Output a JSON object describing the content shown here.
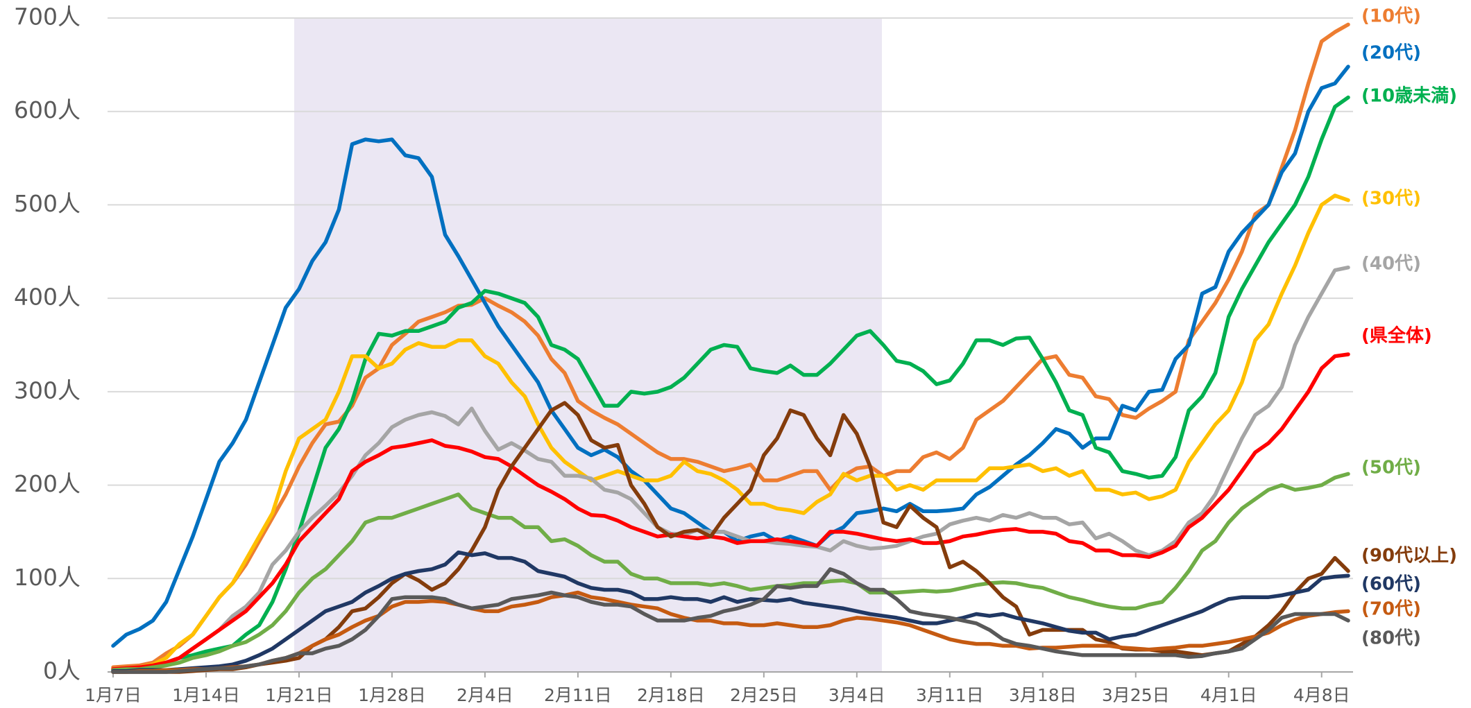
{
  "chart_data": {
    "type": "line",
    "categories": [
      "1月7日",
      null,
      null,
      null,
      null,
      null,
      null,
      "1月14日",
      null,
      null,
      null,
      null,
      null,
      null,
      "1月21日",
      null,
      null,
      null,
      null,
      null,
      null,
      "1月28日",
      null,
      null,
      null,
      null,
      null,
      null,
      "2月4日",
      null,
      null,
      null,
      null,
      null,
      null,
      "2月11日",
      null,
      null,
      null,
      null,
      null,
      null,
      "2月18日",
      null,
      null,
      null,
      null,
      null,
      null,
      "2月25日",
      null,
      null,
      null,
      null,
      null,
      null,
      "3月4日",
      null,
      null,
      null,
      null,
      null,
      null,
      "3月11日",
      null,
      null,
      null,
      null,
      null,
      null,
      "3月18日",
      null,
      null,
      null,
      null,
      null,
      null,
      "3月25日",
      null,
      null,
      null,
      null,
      null,
      null,
      "4月1日",
      null,
      null,
      null,
      null,
      null,
      null,
      "4月8日",
      null,
      null
    ],
    "ylim": [
      0,
      700
    ],
    "yticks": [
      {
        "value": 0,
        "label": "0人"
      },
      {
        "value": 100,
        "label": "100人"
      },
      {
        "value": 200,
        "label": "200人"
      },
      {
        "value": 300,
        "label": "300人"
      },
      {
        "value": 400,
        "label": "400人"
      },
      {
        "value": 500,
        "label": "500人"
      },
      {
        "value": 600,
        "label": "600人"
      },
      {
        "value": 700,
        "label": "700人"
      }
    ],
    "grid": true,
    "series": [
      {
        "name": "(10代)",
        "color": "#ED7D31",
        "values": [
          5,
          6,
          7,
          10,
          20,
          28,
          40,
          60,
          80,
          95,
          115,
          140,
          165,
          190,
          220,
          245,
          265,
          268,
          285,
          315,
          325,
          350,
          362,
          375,
          380,
          385,
          392,
          393,
          400,
          392,
          385,
          375,
          360,
          335,
          320,
          290,
          280,
          272,
          265,
          255,
          245,
          235,
          228,
          228,
          225,
          220,
          215,
          218,
          222,
          205,
          205,
          210,
          215,
          215,
          195,
          210,
          218,
          220,
          210,
          215,
          215,
          230,
          235,
          228,
          240,
          270,
          280,
          290,
          305,
          320,
          335,
          338,
          318,
          315,
          295,
          292,
          275,
          272,
          282,
          290,
          300,
          355,
          375,
          395,
          420,
          450,
          490,
          500,
          540,
          580,
          630,
          675,
          685,
          693
        ]
      },
      {
        "name": "(20代)",
        "color": "#0070C0",
        "values": [
          28,
          40,
          46,
          55,
          75,
          110,
          145,
          185,
          225,
          245,
          270,
          310,
          350,
          390,
          410,
          440,
          460,
          495,
          565,
          570,
          568,
          570,
          553,
          550,
          530,
          468,
          445,
          420,
          395,
          370,
          350,
          330,
          310,
          280,
          260,
          240,
          232,
          238,
          230,
          215,
          205,
          190,
          175,
          170,
          160,
          150,
          150,
          140,
          145,
          148,
          140,
          145,
          140,
          135,
          148,
          155,
          170,
          172,
          175,
          172,
          180,
          172,
          172,
          173,
          175,
          190,
          198,
          210,
          222,
          232,
          245,
          260,
          255,
          240,
          250,
          250,
          285,
          280,
          300,
          302,
          335,
          350,
          405,
          412,
          450,
          470,
          485,
          500,
          535,
          555,
          600,
          625,
          630,
          648
        ]
      },
      {
        "name": "(10歳未満)",
        "color": "#00B050",
        "values": [
          3,
          4,
          5,
          6,
          10,
          15,
          18,
          22,
          25,
          28,
          40,
          50,
          75,
          110,
          150,
          195,
          240,
          260,
          290,
          335,
          362,
          360,
          365,
          365,
          370,
          375,
          390,
          395,
          408,
          405,
          400,
          395,
          380,
          350,
          345,
          335,
          310,
          285,
          285,
          300,
          298,
          300,
          305,
          315,
          330,
          345,
          350,
          348,
          325,
          322,
          320,
          328,
          318,
          318,
          330,
          345,
          360,
          365,
          350,
          333,
          330,
          322,
          308,
          312,
          330,
          355,
          355,
          350,
          357,
          358,
          335,
          310,
          280,
          275,
          240,
          235,
          215,
          212,
          208,
          210,
          230,
          280,
          295,
          320,
          380,
          410,
          435,
          460,
          480,
          500,
          530,
          570,
          605,
          615
        ]
      },
      {
        "name": "(30代)",
        "color": "#FFC000",
        "values": [
          3,
          4,
          5,
          8,
          15,
          30,
          40,
          60,
          80,
          95,
          120,
          145,
          170,
          215,
          250,
          260,
          270,
          300,
          338,
          338,
          325,
          330,
          345,
          352,
          348,
          348,
          355,
          355,
          338,
          330,
          310,
          295,
          265,
          240,
          225,
          215,
          205,
          210,
          215,
          210,
          205,
          205,
          210,
          225,
          215,
          212,
          205,
          195,
          180,
          180,
          175,
          173,
          170,
          182,
          190,
          212,
          205,
          210,
          210,
          195,
          200,
          195,
          205,
          205,
          205,
          205,
          218,
          218,
          220,
          222,
          215,
          218,
          210,
          215,
          195,
          195,
          190,
          192,
          185,
          188,
          195,
          225,
          245,
          265,
          280,
          310,
          355,
          372,
          405,
          435,
          470,
          500,
          510,
          505
        ]
      },
      {
        "name": "(40代)",
        "color": "#A5A5A5",
        "values": [
          2,
          3,
          4,
          5,
          8,
          15,
          25,
          35,
          45,
          60,
          70,
          85,
          115,
          130,
          150,
          165,
          178,
          192,
          210,
          232,
          245,
          262,
          270,
          275,
          278,
          274,
          265,
          282,
          258,
          238,
          245,
          237,
          228,
          225,
          210,
          210,
          207,
          195,
          192,
          185,
          170,
          155,
          148,
          147,
          152,
          150,
          150,
          145,
          140,
          140,
          138,
          137,
          135,
          134,
          130,
          140,
          135,
          132,
          133,
          135,
          140,
          145,
          148,
          158,
          162,
          165,
          162,
          168,
          165,
          170,
          165,
          165,
          158,
          160,
          143,
          148,
          140,
          130,
          125,
          130,
          140,
          160,
          170,
          190,
          220,
          250,
          275,
          285,
          305,
          350,
          380,
          405,
          430,
          433
        ]
      },
      {
        "name": "(県全体)",
        "color": "#FF0000",
        "values": [
          3,
          4,
          5,
          7,
          10,
          15,
          25,
          35,
          45,
          55,
          65,
          80,
          95,
          115,
          140,
          155,
          170,
          185,
          215,
          225,
          232,
          240,
          242,
          245,
          248,
          242,
          240,
          236,
          230,
          228,
          220,
          210,
          200,
          193,
          185,
          175,
          168,
          167,
          162,
          155,
          150,
          145,
          147,
          145,
          143,
          145,
          143,
          138,
          140,
          140,
          142,
          140,
          138,
          135,
          150,
          150,
          148,
          145,
          142,
          140,
          142,
          138,
          138,
          140,
          145,
          147,
          150,
          152,
          153,
          150,
          150,
          148,
          140,
          138,
          130,
          130,
          125,
          125,
          123,
          128,
          135,
          155,
          165,
          180,
          195,
          215,
          235,
          245,
          260,
          280,
          300,
          325,
          338,
          340
        ]
      },
      {
        "name": "(50代)",
        "color": "#70AD47",
        "values": [
          2,
          3,
          3,
          5,
          7,
          10,
          15,
          18,
          22,
          28,
          32,
          40,
          50,
          65,
          85,
          100,
          110,
          125,
          140,
          160,
          165,
          165,
          170,
          175,
          180,
          185,
          190,
          175,
          170,
          165,
          165,
          155,
          155,
          140,
          142,
          135,
          125,
          118,
          118,
          105,
          100,
          100,
          95,
          95,
          95,
          93,
          95,
          92,
          88,
          90,
          92,
          93,
          95,
          95,
          97,
          98,
          95,
          85,
          85,
          85,
          86,
          87,
          86,
          87,
          90,
          93,
          95,
          96,
          95,
          92,
          90,
          85,
          80,
          77,
          73,
          70,
          68,
          68,
          72,
          75,
          90,
          108,
          130,
          140,
          160,
          175,
          185,
          195,
          200,
          195,
          197,
          200,
          208,
          212
        ]
      },
      {
        "name": "(90代以上)",
        "color": "#843C0C",
        "values": [
          0,
          0,
          0,
          0,
          0,
          0,
          1,
          2,
          3,
          3,
          5,
          8,
          10,
          12,
          15,
          28,
          35,
          48,
          65,
          68,
          80,
          95,
          105,
          98,
          88,
          95,
          110,
          130,
          155,
          195,
          220,
          240,
          260,
          280,
          288,
          275,
          248,
          240,
          243,
          200,
          180,
          155,
          145,
          150,
          152,
          145,
          165,
          180,
          195,
          232,
          250,
          280,
          275,
          250,
          232,
          275,
          255,
          220,
          160,
          155,
          178,
          165,
          155,
          112,
          118,
          108,
          95,
          80,
          70,
          40,
          45,
          45,
          45,
          45,
          35,
          32,
          25,
          24,
          24,
          22,
          22,
          20,
          18,
          20,
          22,
          30,
          38,
          50,
          65,
          85,
          100,
          105,
          122,
          108
        ]
      },
      {
        "name": "(60代)",
        "color": "#203864",
        "values": [
          1,
          1,
          2,
          2,
          2,
          3,
          4,
          5,
          6,
          8,
          12,
          18,
          25,
          35,
          45,
          55,
          65,
          70,
          75,
          85,
          92,
          100,
          105,
          108,
          110,
          115,
          128,
          125,
          127,
          122,
          122,
          118,
          108,
          105,
          102,
          95,
          90,
          88,
          88,
          85,
          78,
          78,
          80,
          78,
          78,
          75,
          80,
          75,
          78,
          77,
          76,
          78,
          74,
          72,
          70,
          68,
          65,
          62,
          60,
          58,
          55,
          52,
          52,
          55,
          58,
          62,
          60,
          62,
          58,
          55,
          52,
          48,
          44,
          42,
          42,
          35,
          38,
          40,
          45,
          50,
          55,
          60,
          65,
          72,
          78,
          80,
          80,
          80,
          82,
          85,
          88,
          100,
          102,
          103
        ]
      },
      {
        "name": "(70代)",
        "color": "#C55A11",
        "values": [
          0,
          0,
          1,
          1,
          2,
          2,
          3,
          3,
          4,
          5,
          6,
          8,
          12,
          15,
          20,
          28,
          35,
          40,
          48,
          55,
          60,
          70,
          75,
          75,
          76,
          75,
          72,
          68,
          65,
          65,
          70,
          72,
          75,
          80,
          82,
          85,
          80,
          78,
          75,
          72,
          70,
          68,
          62,
          58,
          55,
          55,
          52,
          52,
          50,
          50,
          52,
          50,
          48,
          48,
          50,
          55,
          58,
          57,
          55,
          53,
          50,
          45,
          40,
          35,
          32,
          30,
          30,
          28,
          28,
          25,
          26,
          26,
          27,
          28,
          28,
          28,
          26,
          25,
          24,
          25,
          26,
          28,
          28,
          30,
          32,
          35,
          38,
          42,
          50,
          56,
          60,
          62,
          64,
          65
        ]
      },
      {
        "name": "(80代)",
        "color": "#595959",
        "values": [
          0,
          0,
          0,
          0,
          0,
          1,
          2,
          3,
          4,
          4,
          6,
          8,
          12,
          15,
          20,
          20,
          25,
          28,
          35,
          45,
          60,
          78,
          80,
          80,
          80,
          78,
          72,
          68,
          70,
          72,
          78,
          80,
          82,
          85,
          82,
          80,
          75,
          72,
          72,
          70,
          62,
          55,
          55,
          55,
          58,
          60,
          65,
          68,
          72,
          78,
          92,
          90,
          92,
          92,
          110,
          105,
          95,
          88,
          88,
          78,
          65,
          62,
          60,
          58,
          55,
          52,
          45,
          35,
          30,
          28,
          25,
          22,
          20,
          18,
          18,
          18,
          18,
          18,
          18,
          18,
          18,
          16,
          17,
          20,
          22,
          25,
          35,
          45,
          58,
          62,
          62,
          62,
          62,
          55
        ]
      }
    ]
  }
}
